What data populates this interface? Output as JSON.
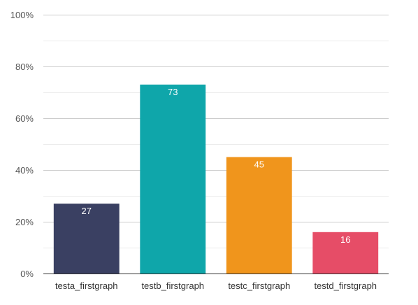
{
  "chart_data": {
    "type": "bar",
    "categories": [
      "testa_firstgraph",
      "testb_firstgraph",
      "testc_firstgraph",
      "testd_firstgraph"
    ],
    "values": [
      27,
      73,
      45,
      16
    ],
    "data_labels": [
      "27",
      "73",
      "45",
      "16"
    ],
    "bar_colors": [
      "#3a4062",
      "#0fa6aa",
      "#f0951c",
      "#e64d67"
    ],
    "title": "",
    "xlabel": "",
    "ylabel": "",
    "ylim": [
      0,
      100
    ],
    "y_ticks": [
      0,
      20,
      40,
      60,
      80,
      100
    ],
    "y_tick_labels": [
      "0%",
      "20%",
      "40%",
      "60%",
      "80%",
      "100%"
    ],
    "grid": true,
    "legend": "none"
  }
}
